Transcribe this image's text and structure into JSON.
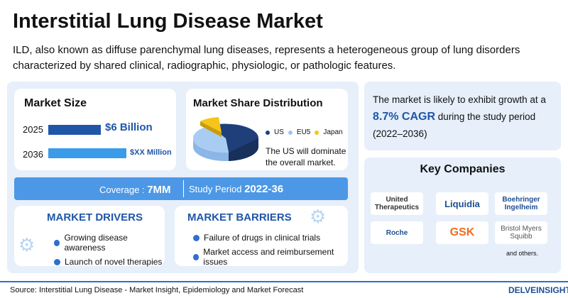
{
  "header": {
    "title": "Interstitial Lung Disease Market",
    "description": [
      "ILD, also known as diffuse parenchymal lung diseases, represents a heterogeneous group of lung disorders",
      "characterized by shared clinical, radiographic, physiologic, or pathologic features."
    ]
  },
  "market_size": {
    "title": "Market Size",
    "rows": [
      {
        "year": "2025",
        "value": "$6 Billion"
      },
      {
        "year": "2036",
        "value": "$XX Million"
      }
    ]
  },
  "market_share": {
    "title": "Market Share Distribution",
    "legend": [
      "US",
      "EU5",
      "Japan"
    ],
    "note": [
      "The US will dominate",
      "the overall market."
    ]
  },
  "banner": {
    "coverage_label": "Coverage :",
    "coverage_value": "7MM",
    "period_label": "Study Period",
    "period_value": "2022-36"
  },
  "drivers": {
    "title": "MARKET DRIVERS",
    "items": [
      "Growing disease awareness",
      "Launch of novel therapies"
    ]
  },
  "barriers": {
    "title": "MARKET BARRIERS",
    "items": [
      "Failure of drugs in clinical trials",
      "Market access and reimbursement issues"
    ]
  },
  "growth": {
    "lead": "The market is likely to exhibit growth at a",
    "cagr": "8.7% CAGR",
    "rest": "during the study period",
    "period": "(2022–2036)"
  },
  "key_companies": {
    "title": "Key Companies",
    "companies": [
      "United Therapeutics",
      "Liquidia",
      "Boehringer Ingelheim",
      "Roche",
      "GSK",
      "Bristol Myers Squibb"
    ],
    "note": "and others."
  },
  "footer": {
    "source": "Source: Interstitial Lung Disease - Market Insight, Epidemiology and Market Forecast",
    "brand": "DELVEINSIGHT"
  }
}
